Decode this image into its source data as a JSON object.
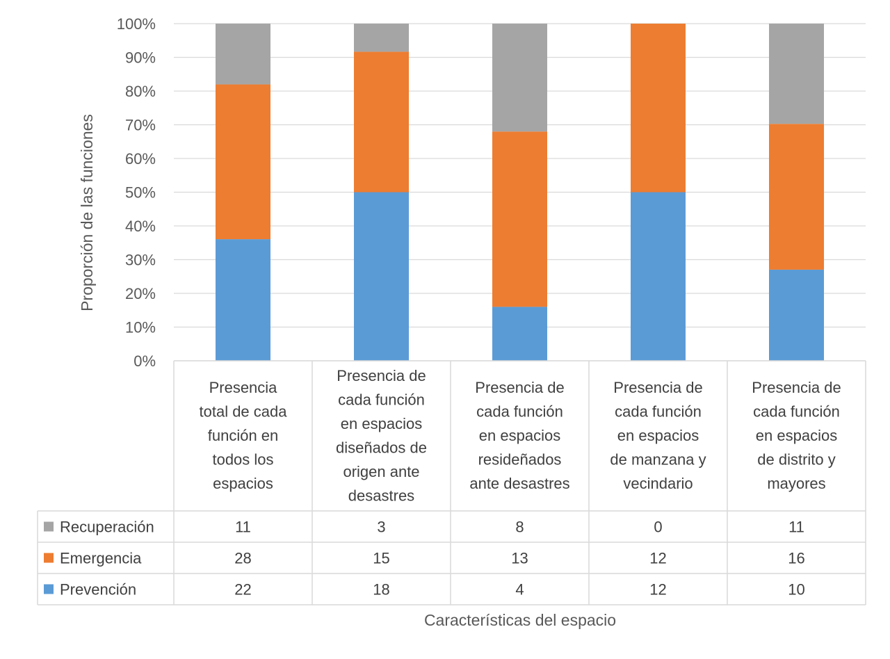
{
  "chart_data": {
    "type": "bar",
    "stacked": true,
    "percent_stacked": true,
    "categories": [
      [
        "Presencia",
        "total de cada",
        "función en",
        "todos los",
        "espacios"
      ],
      [
        "Presencia de",
        "cada función",
        "en espacios",
        "diseñados de",
        "origen ante",
        "desastres"
      ],
      [
        "Presencia de",
        "cada función",
        "en espacios",
        "resideñados",
        "ante desastres"
      ],
      [
        "Presencia de",
        "cada función",
        "en espacios",
        "de manzana y",
        "vecindario"
      ],
      [
        "Presencia de",
        "cada función",
        "en espacios",
        "de distrito y",
        "mayores"
      ]
    ],
    "series": [
      {
        "name": "Recuperación",
        "color": "#A5A5A5",
        "values": [
          11,
          3,
          8,
          0,
          11
        ]
      },
      {
        "name": "Emergencia",
        "color": "#ED7D31",
        "values": [
          28,
          15,
          13,
          12,
          16
        ]
      },
      {
        "name": "Prevención",
        "color": "#5B9BD5",
        "values": [
          22,
          18,
          4,
          12,
          10
        ]
      }
    ],
    "yticks": [
      "0%",
      "10%",
      "20%",
      "30%",
      "40%",
      "50%",
      "60%",
      "70%",
      "80%",
      "90%",
      "100%"
    ],
    "ylim": [
      0,
      100
    ],
    "ylabel": "Proporción de las funciones",
    "xlabel": "Características del espacio",
    "grid": true,
    "legend": "data-table"
  }
}
